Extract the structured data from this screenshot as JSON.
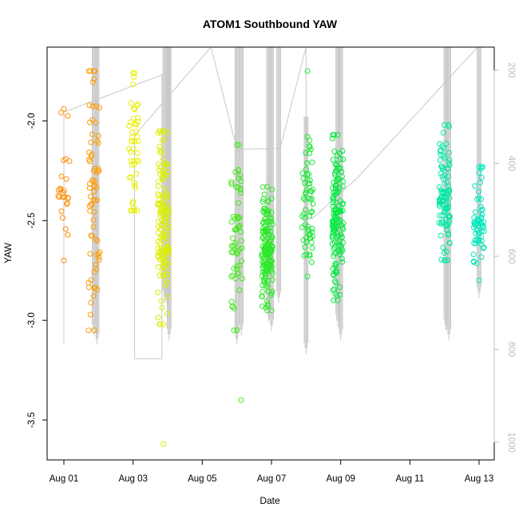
{
  "chart_data": {
    "type": "scatter",
    "title": "ATOM1 Southbound YAW",
    "xlabel": "Date",
    "ylabel": "YAW",
    "x_axis": {
      "type": "date",
      "min": "2023-07-31T12:00",
      "max": "2023-08-13T12:00",
      "ticks": [
        {
          "value": "2023-08-01",
          "label": "Aug 01"
        },
        {
          "value": "2023-08-03",
          "label": "Aug 03"
        },
        {
          "value": "2023-08-05",
          "label": "Aug 05"
        },
        {
          "value": "2023-08-07",
          "label": "Aug 07"
        },
        {
          "value": "2023-08-09",
          "label": "Aug 09"
        },
        {
          "value": "2023-08-11",
          "label": "Aug 11"
        },
        {
          "value": "2023-08-13",
          "label": "Aug 13"
        }
      ]
    },
    "y_axis": {
      "min": -3.7,
      "max": -1.63,
      "ticks": [
        {
          "value": -2.0,
          "label": "-2.0"
        },
        {
          "value": -2.5,
          "label": "-2.5"
        },
        {
          "value": -3.0,
          "label": "-3.0"
        },
        {
          "value": -3.5,
          "label": "-3.5"
        }
      ]
    },
    "y2_axis": {
      "min": 1050,
      "max": 120,
      "reversed": true,
      "ticks": [
        {
          "value": 200,
          "label": "200"
        },
        {
          "value": 400,
          "label": "400"
        },
        {
          "value": 600,
          "label": "600"
        },
        {
          "value": 800,
          "label": "800"
        },
        {
          "value": 1000,
          "label": "1000"
        }
      ]
    },
    "grid": false,
    "legend": "none",
    "series": [
      {
        "marker": "open-circle",
        "clusters": [
          {
            "x": "2023-08-01T00:00",
            "y_min": -2.7,
            "y_max": -1.94,
            "color": "#ff8c00",
            "n": 24
          },
          {
            "x": "2023-08-01T21:00",
            "y_min": -3.05,
            "y_max": -1.75,
            "color": "#ff9a00",
            "n": 70
          },
          {
            "x": "2023-08-03T01:00",
            "y_min": -2.45,
            "y_max": -1.76,
            "color": "#e8ef00",
            "n": 45
          },
          {
            "x": "2023-08-03T21:00",
            "y_min": -3.02,
            "y_max": -2.05,
            "color": "#dcef00",
            "n": 140
          },
          {
            "x": "2023-08-06T00:00",
            "y_min": -3.05,
            "y_max": -2.12,
            "color": "#44e81a",
            "n": 60
          },
          {
            "x": "2023-08-06T21:00",
            "y_min": -2.95,
            "y_max": -2.33,
            "color": "#2ee82a",
            "n": 160
          },
          {
            "x": "2023-08-08T01:00",
            "y_min": -2.78,
            "y_max": -2.08,
            "color": "#19e835",
            "n": 60
          },
          {
            "x": "2023-08-08T22:00",
            "y_min": -2.9,
            "y_max": -2.07,
            "color": "#08e842",
            "n": 150
          },
          {
            "x": "2023-08-12T00:00",
            "y_min": -2.7,
            "y_max": -2.02,
            "color": "#00e8a4",
            "n": 100
          },
          {
            "x": "2023-08-13T00:00",
            "y_min": -2.8,
            "y_max": -2.23,
            "color": "#00e8bc",
            "n": 60
          }
        ],
        "outliers": [
          {
            "x": "2023-08-01T21:00",
            "y": -1.79,
            "color": "#ff9a00"
          },
          {
            "x": "2023-08-03T00:30",
            "y": -1.78,
            "color": "#e8ef00"
          },
          {
            "x": "2023-08-03T21:00",
            "y": -3.62,
            "color": "#dcef00"
          },
          {
            "x": "2023-08-06T03:00",
            "y": -3.4,
            "color": "#44e81a"
          },
          {
            "x": "2023-08-08T01:00",
            "y": -1.75,
            "color": "#19e835"
          }
        ]
      },
      {
        "axis": "right",
        "style": "line",
        "color": "#c8c8c8",
        "points": [
          {
            "x": "2023-08-01T00:00",
            "y": 790
          },
          {
            "x": "2023-08-01T00:00",
            "y": 290
          },
          {
            "x": "2023-08-03T20:00",
            "y": 210
          },
          {
            "x": "2023-08-03T20:00",
            "y": 820
          },
          {
            "x": "2023-08-03T01:00",
            "y": 820
          },
          {
            "x": "2023-08-03T01:00",
            "y": 340
          },
          {
            "x": "2023-08-05T06:00",
            "y": 120
          },
          {
            "x": "2023-08-06T00:00",
            "y": 370
          },
          {
            "x": "2023-08-07T06:00",
            "y": 368
          },
          {
            "x": "2023-08-08T00:00",
            "y": 120
          },
          {
            "x": "2023-08-08T00:00",
            "y": 440
          },
          {
            "x": "2023-08-08T04:00",
            "y": 440
          },
          {
            "x": "2023-08-08T04:00",
            "y": 520
          },
          {
            "x": "2023-08-09T12:00",
            "y": 430
          },
          {
            "x": "2023-08-12T23:00",
            "y": 140
          }
        ],
        "spikes": [
          {
            "x": "2023-08-01T21:00",
            "y_from": 120,
            "y_to": 770
          },
          {
            "x": "2023-08-01T23:00",
            "y_from": 120,
            "y_to": 790
          },
          {
            "x": "2023-08-03T22:00",
            "y_from": 120,
            "y_to": 700
          },
          {
            "x": "2023-08-04T00:00",
            "y_from": 120,
            "y_to": 710
          },
          {
            "x": "2023-08-04T01:00",
            "y_from": 120,
            "y_to": 780
          },
          {
            "x": "2023-08-06T00:00",
            "y_from": 120,
            "y_to": 790
          },
          {
            "x": "2023-08-06T03:00",
            "y_from": 120,
            "y_to": 770
          },
          {
            "x": "2023-08-06T22:00",
            "y_from": 120,
            "y_to": 740
          },
          {
            "x": "2023-08-07T00:00",
            "y_from": 120,
            "y_to": 760
          },
          {
            "x": "2023-08-07T05:00",
            "y_from": 120,
            "y_to": 700
          },
          {
            "x": "2023-08-08T00:00",
            "y_from": 300,
            "y_to": 810
          },
          {
            "x": "2023-08-08T22:00",
            "y_from": 120,
            "y_to": 750
          },
          {
            "x": "2023-08-09T00:00",
            "y_from": 120,
            "y_to": 780
          },
          {
            "x": "2023-08-12T01:00",
            "y_from": 140,
            "y_to": 760
          },
          {
            "x": "2023-08-12T03:00",
            "y_from": 140,
            "y_to": 780
          },
          {
            "x": "2023-08-13T00:00",
            "y_from": 140,
            "y_to": 690
          }
        ]
      }
    ]
  }
}
